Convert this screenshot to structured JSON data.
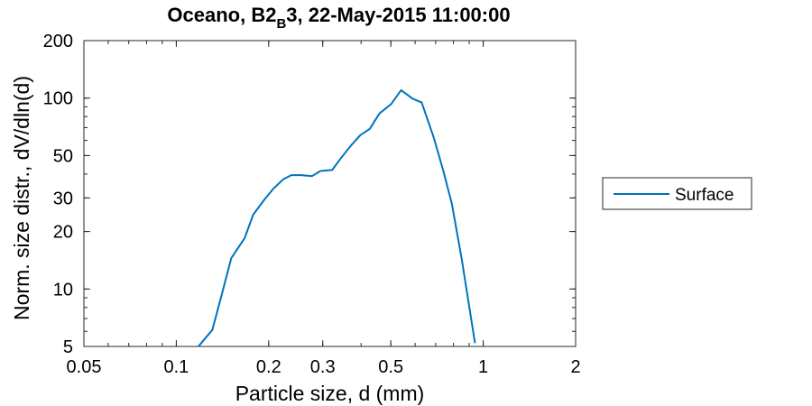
{
  "chart_data": {
    "type": "line",
    "title": {
      "main": "Oceano, B2",
      "subscript": "B",
      "rest": "3, 22-May-2015 11:00:00"
    },
    "xlabel": "Particle size, d (mm)",
    "ylabel": "Norm. size distr., dV/dln(d)",
    "xscale": "log",
    "yscale": "log",
    "xlim": [
      0.05,
      2
    ],
    "ylim": [
      5,
      200
    ],
    "xticks": [
      0.05,
      0.1,
      0.2,
      0.3,
      0.5,
      1,
      2
    ],
    "xticklabels": [
      "0.05",
      "0.1",
      "0.2",
      "0.3",
      "0.5",
      "1",
      "2"
    ],
    "yticks": [
      5,
      10,
      20,
      30,
      50,
      100,
      200
    ],
    "yticklabels": [
      "5",
      "10",
      "20",
      "30",
      "50",
      "100",
      "200"
    ],
    "grid": false,
    "legend_position": "outside-right",
    "series": [
      {
        "name": "Surface",
        "color": "#0072BD",
        "x": [
          0.118,
          0.131,
          0.141,
          0.151,
          0.167,
          0.178,
          0.194,
          0.207,
          0.223,
          0.237,
          0.255,
          0.277,
          0.295,
          0.322,
          0.344,
          0.371,
          0.398,
          0.427,
          0.459,
          0.501,
          0.54,
          0.59,
          0.63,
          0.69,
          0.74,
          0.79,
          0.85,
          0.94
        ],
        "y": [
          5,
          6.1,
          9.5,
          14.5,
          18.5,
          24.5,
          29.5,
          33.5,
          37.5,
          39.5,
          39.5,
          39,
          41.5,
          42,
          48.5,
          56.5,
          64,
          69,
          83,
          93,
          110,
          99,
          95,
          62,
          42,
          28,
          14.5,
          5.2
        ]
      }
    ]
  }
}
